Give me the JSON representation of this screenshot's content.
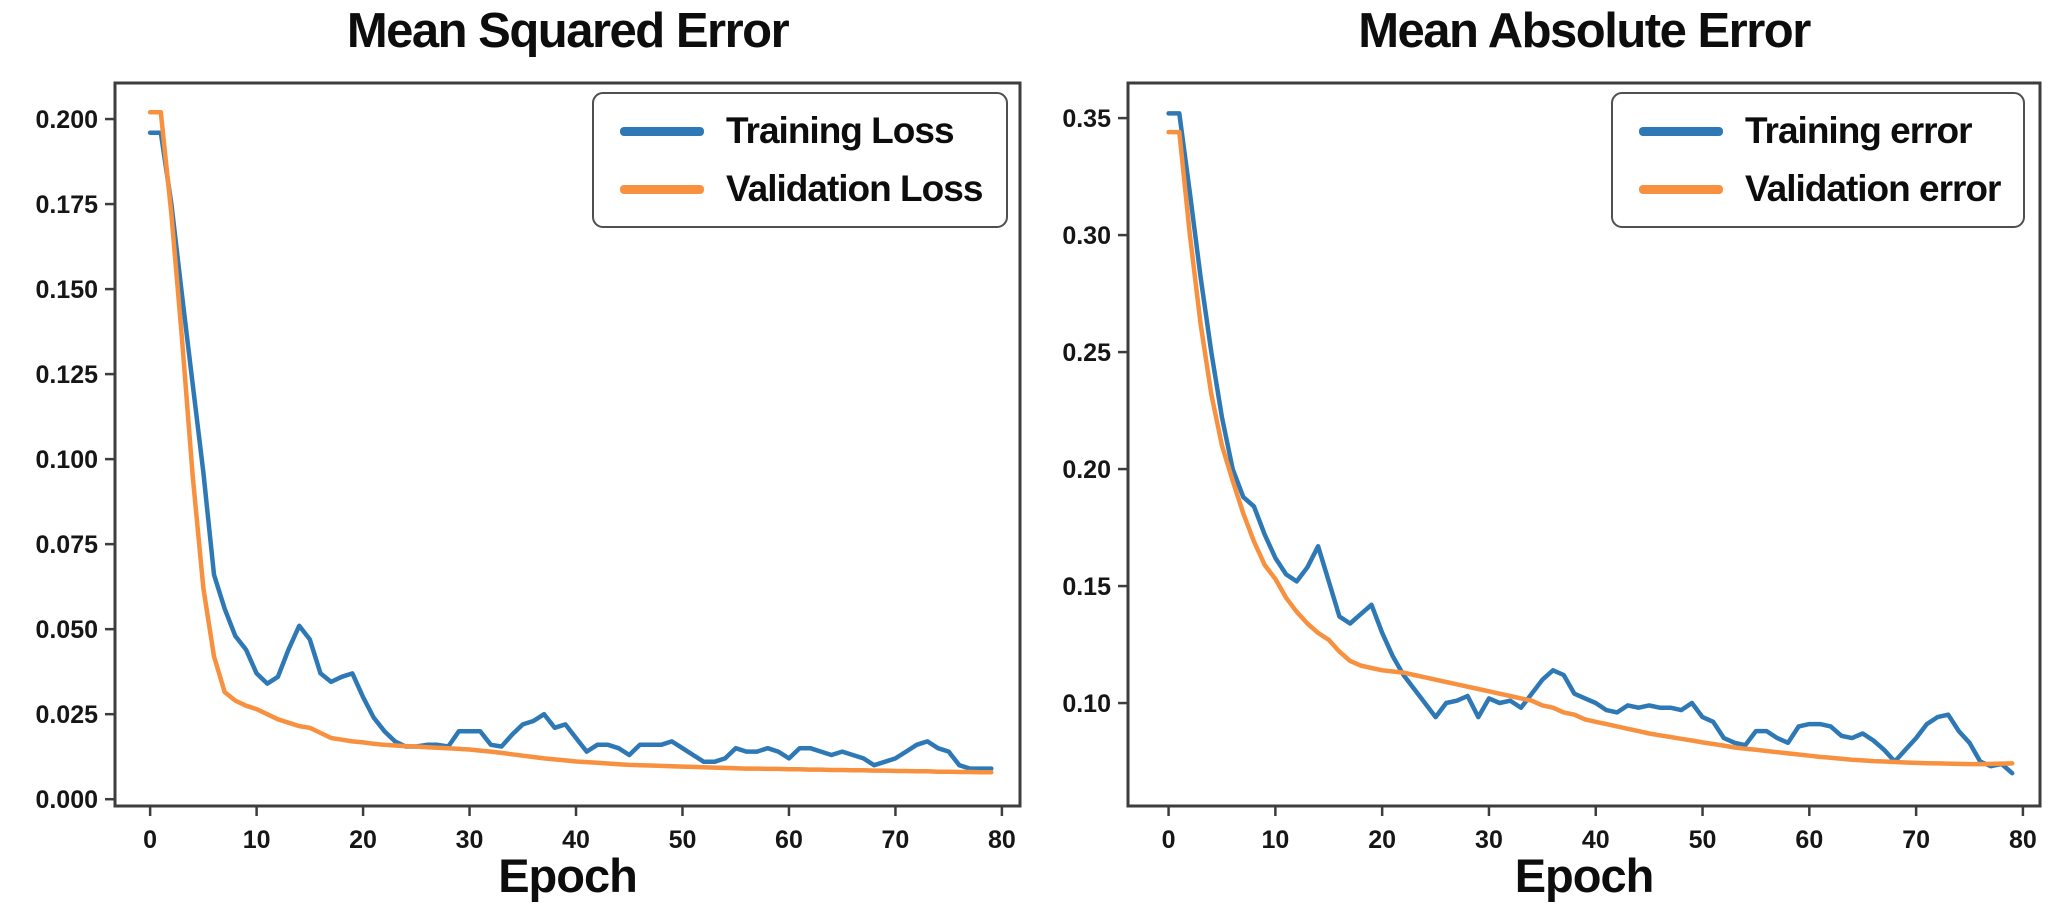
{
  "chart_data": [
    {
      "type": "line",
      "title": "Mean Squared Error",
      "xlabel": "Epoch",
      "x_is_epoch_index": true,
      "xlim": [
        -3.3,
        81.7
      ],
      "ylim": [
        -0.002,
        0.2106
      ],
      "xticks": [
        "0",
        "10",
        "20",
        "30",
        "40",
        "50",
        "60",
        "70",
        "80"
      ],
      "yticks": [
        "0.000",
        "0.025",
        "0.050",
        "0.075",
        "0.100",
        "0.125",
        "0.150",
        "0.175",
        "0.200"
      ],
      "grid": false,
      "legend_position": "upper right",
      "series": [
        {
          "name": "Training Loss",
          "color": "#2e79b5",
          "values": [
            0.196,
            0.196,
            0.175,
            0.148,
            0.122,
            0.096,
            0.066,
            0.056,
            0.048,
            0.044,
            0.037,
            0.034,
            0.036,
            0.044,
            0.051,
            0.047,
            0.037,
            0.0345,
            0.036,
            0.037,
            0.03,
            0.024,
            0.02,
            0.017,
            0.0155,
            0.0155,
            0.016,
            0.016,
            0.0155,
            0.02,
            0.02,
            0.02,
            0.016,
            0.0155,
            0.019,
            0.022,
            0.023,
            0.025,
            0.021,
            0.022,
            0.018,
            0.014,
            0.016,
            0.016,
            0.015,
            0.013,
            0.016,
            0.016,
            0.016,
            0.017,
            0.015,
            0.013,
            0.011,
            0.011,
            0.012,
            0.015,
            0.014,
            0.014,
            0.015,
            0.014,
            0.012,
            0.015,
            0.015,
            0.014,
            0.013,
            0.014,
            0.013,
            0.012,
            0.01,
            0.011,
            0.012,
            0.014,
            0.016,
            0.017,
            0.015,
            0.014,
            0.01,
            0.009,
            0.009,
            0.009
          ]
        },
        {
          "name": "Validation Loss",
          "color": "#f79140",
          "values": [
            0.202,
            0.202,
            0.172,
            0.135,
            0.095,
            0.062,
            0.042,
            0.0315,
            0.029,
            0.0275,
            0.0265,
            0.025,
            0.0235,
            0.0225,
            0.0215,
            0.021,
            0.0195,
            0.018,
            0.0175,
            0.017,
            0.0167,
            0.0163,
            0.016,
            0.0158,
            0.0156,
            0.0155,
            0.0153,
            0.0151,
            0.015,
            0.0148,
            0.0146,
            0.0143,
            0.014,
            0.0136,
            0.0132,
            0.0128,
            0.0124,
            0.012,
            0.0117,
            0.0114,
            0.0111,
            0.0109,
            0.0107,
            0.0105,
            0.0103,
            0.0101,
            0.01,
            0.0099,
            0.0098,
            0.0097,
            0.0096,
            0.0095,
            0.0094,
            0.0093,
            0.0092,
            0.0091,
            0.009,
            0.009,
            0.0089,
            0.0089,
            0.0088,
            0.0088,
            0.0087,
            0.0087,
            0.0086,
            0.0086,
            0.0085,
            0.0085,
            0.0084,
            0.0084,
            0.0083,
            0.0083,
            0.0082,
            0.0082,
            0.0081,
            0.0081,
            0.008,
            0.008,
            0.0079,
            0.0079
          ]
        }
      ]
    },
    {
      "type": "line",
      "title": "Mean Absolute Error",
      "xlabel": "Epoch",
      "x_is_epoch_index": true,
      "xlim": [
        -3.8,
        81.6
      ],
      "ylim": [
        0.056,
        0.365
      ],
      "xticks": [
        "0",
        "10",
        "20",
        "30",
        "40",
        "50",
        "60",
        "70",
        "80"
      ],
      "yticks": [
        "0.10",
        "0.15",
        "0.20",
        "0.25",
        "0.30",
        "0.35"
      ],
      "grid": false,
      "legend_position": "upper right",
      "series": [
        {
          "name": "Training error",
          "color": "#2e79b5",
          "values": [
            0.352,
            0.352,
            0.318,
            0.282,
            0.25,
            0.222,
            0.2,
            0.188,
            0.184,
            0.172,
            0.162,
            0.155,
            0.152,
            0.158,
            0.167,
            0.152,
            0.137,
            0.134,
            0.138,
            0.142,
            0.13,
            0.12,
            0.112,
            0.106,
            0.1,
            0.094,
            0.1,
            0.101,
            0.103,
            0.094,
            0.102,
            0.1,
            0.101,
            0.098,
            0.104,
            0.11,
            0.114,
            0.112,
            0.104,
            0.102,
            0.1,
            0.097,
            0.096,
            0.099,
            0.098,
            0.099,
            0.098,
            0.098,
            0.097,
            0.1,
            0.094,
            0.092,
            0.085,
            0.083,
            0.082,
            0.088,
            0.088,
            0.085,
            0.083,
            0.09,
            0.091,
            0.091,
            0.09,
            0.086,
            0.085,
            0.087,
            0.084,
            0.08,
            0.075,
            0.08,
            0.085,
            0.091,
            0.094,
            0.095,
            0.088,
            0.083,
            0.075,
            0.073,
            0.074,
            0.07
          ]
        },
        {
          "name": "Validation error",
          "color": "#f79140",
          "values": [
            0.344,
            0.344,
            0.3,
            0.262,
            0.232,
            0.21,
            0.195,
            0.181,
            0.169,
            0.159,
            0.153,
            0.145,
            0.139,
            0.134,
            0.13,
            0.127,
            0.122,
            0.118,
            0.116,
            0.115,
            0.114,
            0.1135,
            0.113,
            0.112,
            0.111,
            0.11,
            0.109,
            0.108,
            0.107,
            0.106,
            0.105,
            0.104,
            0.103,
            0.102,
            0.101,
            0.099,
            0.098,
            0.096,
            0.095,
            0.093,
            0.092,
            0.091,
            0.09,
            0.089,
            0.088,
            0.087,
            0.0862,
            0.0855,
            0.0847,
            0.084,
            0.0832,
            0.0825,
            0.0818,
            0.081,
            0.0805,
            0.08,
            0.0795,
            0.079,
            0.0785,
            0.078,
            0.0775,
            0.077,
            0.0766,
            0.0762,
            0.0758,
            0.0755,
            0.0752,
            0.075,
            0.0748,
            0.0746,
            0.0744,
            0.0743,
            0.0742,
            0.0741,
            0.074,
            0.0739,
            0.0739,
            0.074,
            0.0741,
            0.0742
          ]
        }
      ]
    }
  ]
}
